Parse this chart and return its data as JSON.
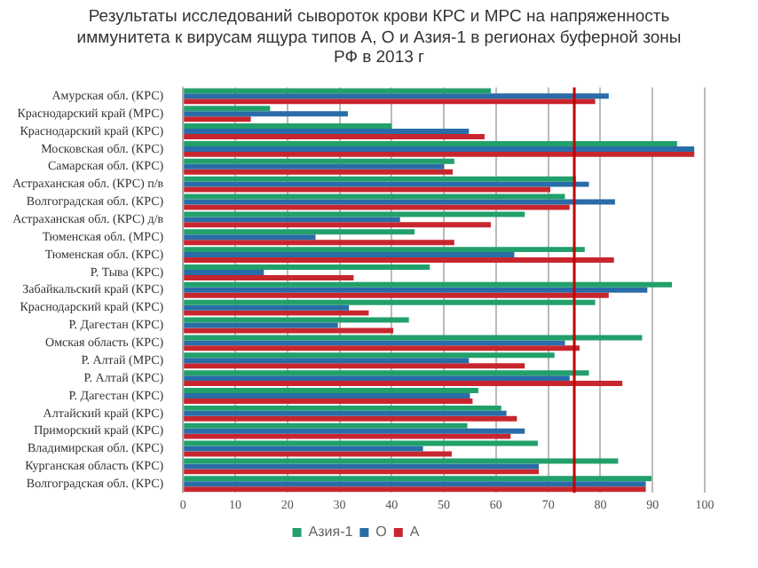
{
  "chart_data": {
    "type": "bar",
    "orientation": "horizontal",
    "title": "Результаты исследований сывороток крови КРС и МРС на напряженность иммунитета к вирусам ящура типов А, О и Азия-1 в регионах  буферной зоны РФ в 2013 г",
    "categories": [
      "Амурская обл. (КРС)",
      "Краснодарский край (МРС)",
      "Краснодарский край (КРС)",
      "Московская обл. (КРС)",
      "Самарская обл. (КРС)",
      "Астраханская обл. (КРС) п/в",
      "Волгоградская обл. (КРС)",
      "Астраханская обл. (КРС) д/в",
      "Тюменская обл. (МРС)",
      "Тюменская обл. (КРС)",
      "Р. Тыва (КРС)",
      "Забайкальский край (КРС)",
      "Краснодарский край (КРС)",
      "Р. Дагестан (КРС)",
      "Омская область (КРС)",
      "Р. Алтай (МРС)",
      "Р. Алтай (КРС)",
      "Р. Дагестан (КРС)",
      "Алтайский край (КРС)",
      "Приморский край (КРС)",
      "Владимирская обл. (КРС)",
      "Курганская область (КРС)",
      "Волгоградская обл. (КРС)"
    ],
    "series": [
      {
        "name": "Азия-1",
        "color": "#22a06b",
        "values": [
          59,
          16.7,
          40,
          94.7,
          52,
          75.3,
          73.2,
          65.5,
          44.4,
          77,
          47.3,
          93.7,
          79,
          43.3,
          88,
          71.2,
          77.8,
          56.6,
          61,
          54.5,
          68,
          83.4,
          89.8
        ]
      },
      {
        "name": "О",
        "color": "#2a6ca8",
        "values": [
          81.6,
          31.6,
          54.8,
          98,
          50,
          77.8,
          82.8,
          41.6,
          25.4,
          63.5,
          15.5,
          89,
          31.8,
          29.7,
          73.2,
          54.8,
          74.1,
          55,
          62,
          65.5,
          46,
          68.2,
          88.7
        ]
      },
      {
        "name": "А",
        "color": "#c8262e",
        "values": [
          79,
          13,
          57.8,
          98,
          51.7,
          70.4,
          74.1,
          59,
          52,
          82.6,
          32.7,
          81.6,
          35.6,
          40.3,
          76,
          65.5,
          84.2,
          55.5,
          64,
          62.8,
          51.5,
          68.2,
          88.7
        ]
      }
    ],
    "xlim": [
      0,
      100
    ],
    "xticks": [
      0,
      10,
      20,
      30,
      40,
      50,
      60,
      70,
      80,
      90,
      100
    ],
    "ref_lines": [
      {
        "axis": "x",
        "value": 75,
        "color": "#c00000"
      }
    ],
    "grid": "x",
    "legend": "bottom"
  }
}
